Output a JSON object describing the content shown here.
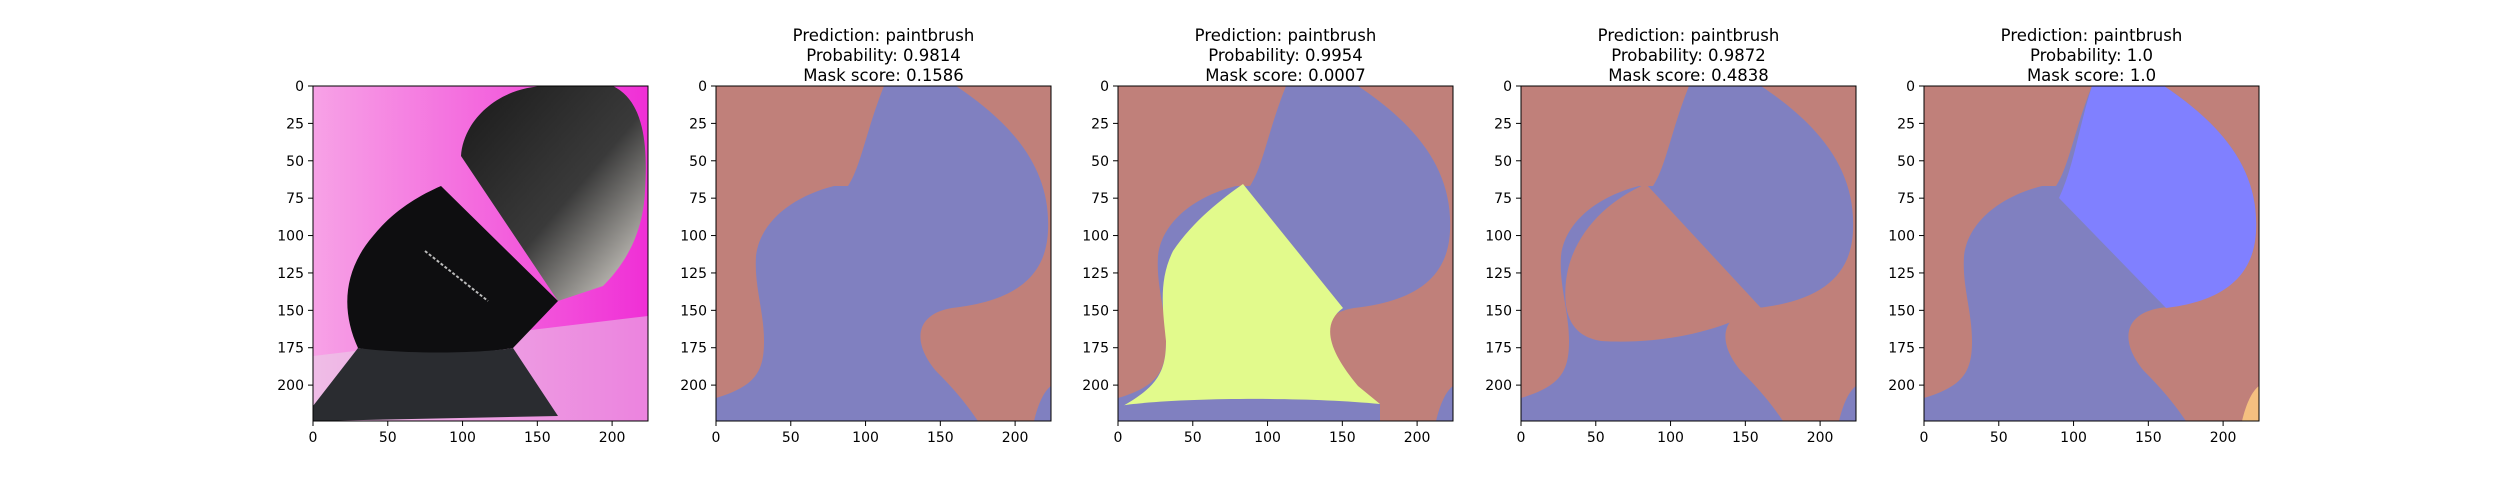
{
  "chart_data": [
    {
      "type": "image",
      "title_lines": [],
      "x_ticks": [
        0,
        50,
        100,
        150,
        200
      ],
      "y_ticks": [
        0,
        25,
        50,
        75,
        100,
        125,
        150,
        175,
        200
      ],
      "xlim": [
        0,
        224
      ],
      "ylim": [
        224,
        0
      ],
      "content": "input-photo"
    },
    {
      "type": "image",
      "title_lines": [
        "Prediction: paintbrush",
        "Probability: 0.9814",
        "Mask score: 0.1586"
      ],
      "prediction": "paintbrush",
      "probability": 0.9814,
      "mask_score": 0.1586,
      "x_ticks": [
        0,
        50,
        100,
        150,
        200
      ],
      "y_ticks": [
        0,
        25,
        50,
        75,
        100,
        125,
        150,
        175,
        200
      ],
      "xlim": [
        0,
        224
      ],
      "ylim": [
        224,
        0
      ],
      "content": "mask-1",
      "colors": {
        "background": "#c0807a",
        "region": "#8080c0"
      }
    },
    {
      "type": "image",
      "title_lines": [
        "Prediction: paintbrush",
        "Probability: 0.9954",
        "Mask score: 0.0007"
      ],
      "prediction": "paintbrush",
      "probability": 0.9954,
      "mask_score": 0.0007,
      "x_ticks": [
        0,
        50,
        100,
        150,
        200
      ],
      "y_ticks": [
        0,
        25,
        50,
        75,
        100,
        125,
        150,
        175,
        200
      ],
      "xlim": [
        0,
        224
      ],
      "ylim": [
        224,
        0
      ],
      "content": "mask-2",
      "colors": {
        "background": "#c0807a",
        "region": "#8080c0",
        "highlight": "#e2fa8c"
      }
    },
    {
      "type": "image",
      "title_lines": [
        "Prediction: paintbrush",
        "Probability: 0.9872",
        "Mask score: 0.4838"
      ],
      "prediction": "paintbrush",
      "probability": 0.9872,
      "mask_score": 0.4838,
      "x_ticks": [
        0,
        50,
        100,
        150,
        200
      ],
      "y_ticks": [
        0,
        25,
        50,
        75,
        100,
        125,
        150,
        175,
        200
      ],
      "xlim": [
        0,
        224
      ],
      "ylim": [
        224,
        0
      ],
      "content": "mask-3",
      "colors": {
        "background": "#c0807a",
        "region": "#8080c0"
      }
    },
    {
      "type": "image",
      "title_lines": [
        "Prediction: paintbrush",
        "Probability: 1.0",
        "Mask score: 1.0"
      ],
      "prediction": "paintbrush",
      "probability": 1.0,
      "mask_score": 1.0,
      "x_ticks": [
        0,
        50,
        100,
        150,
        200
      ],
      "y_ticks": [
        0,
        25,
        50,
        75,
        100,
        125,
        150,
        175,
        200
      ],
      "xlim": [
        0,
        224
      ],
      "ylim": [
        224,
        0
      ],
      "content": "mask-4",
      "colors": {
        "background": "#c0807a",
        "region": "#8080c0",
        "highlight": "#8080ff",
        "corner": "#f5c080"
      }
    }
  ]
}
